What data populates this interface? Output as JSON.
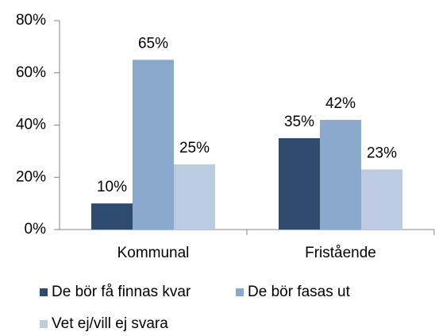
{
  "chart_data": {
    "type": "bar",
    "categories": [
      "Kommunal",
      "Fristående"
    ],
    "series": [
      {
        "name": "De bör få finnas kvar",
        "color": "#2f4b6e",
        "values": [
          10,
          35
        ],
        "value_labels": [
          "10%",
          "35%"
        ]
      },
      {
        "name": "De bör fasas ut",
        "color": "#8ba9cc",
        "values": [
          65,
          42
        ],
        "value_labels": [
          "65%",
          "42%"
        ]
      },
      {
        "name": "Vet ej/vill ej svara",
        "color": "#bccbe0",
        "values": [
          25,
          23
        ],
        "value_labels": [
          "25%",
          "23%"
        ]
      }
    ],
    "ylim": [
      0,
      80
    ],
    "yticks": [
      {
        "value": 0,
        "label": "0%"
      },
      {
        "value": 20,
        "label": "20%"
      },
      {
        "value": 40,
        "label": "40%"
      },
      {
        "value": 60,
        "label": "60%"
      },
      {
        "value": 80,
        "label": "80%"
      }
    ],
    "legend": "bottom"
  }
}
